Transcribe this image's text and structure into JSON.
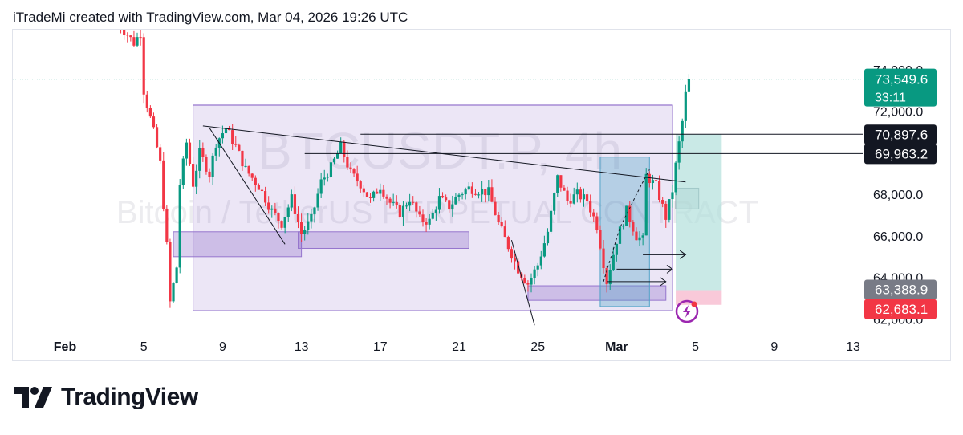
{
  "header": {
    "caption": "iTradeMi created with TradingView.com, Mar 04, 2026 19:26 UTC"
  },
  "watermark": {
    "symbol": "BTCUSDT.P, 4h",
    "description": "Bitcoin / TetherUS PERPETUAL CONTRACT"
  },
  "brand": {
    "name": "TradingView"
  },
  "colors": {
    "up": "#089981",
    "down": "#f23645",
    "zone": "#7e57c2",
    "target": "#b2dfdb",
    "stop": "#f8bbd0",
    "current_price_tag": "#089981",
    "level_tag": "#131722",
    "stop_tag": "#f23645",
    "gray_tag": "#787b86"
  },
  "icons": {
    "lightning": "lightning-icon"
  },
  "chart_data": {
    "type": "candlestick",
    "symbol": "BTCUSDT.P",
    "interval": "4h",
    "ylim": [
      61700,
      75200
    ],
    "y_ticks": [
      "74,000.0",
      "72,000.0",
      "68,000.0",
      "66,000.0",
      "64,000.0",
      "62,000.0"
    ],
    "x_ticks": [
      "Feb",
      "5",
      "9",
      "13",
      "17",
      "21",
      "25",
      "Mar",
      "5",
      "9",
      "13"
    ],
    "price_labels": [
      {
        "label": "73,549.6",
        "sub": "33:11",
        "kind": "current"
      },
      {
        "label": "70,897.6",
        "kind": "level"
      },
      {
        "label": "69,963.2",
        "kind": "level"
      },
      {
        "label": "63,388.9",
        "kind": "gray"
      },
      {
        "label": "62,683.1",
        "kind": "stop"
      }
    ],
    "close_path": [
      [
        "Feb 3 12:00",
        76500
      ],
      [
        "Feb 4 12:00",
        75300
      ],
      [
        "Feb 4 20:00",
        75800
      ],
      [
        "Feb 5 00:00",
        73000
      ],
      [
        "Feb 5 12:00",
        71000
      ],
      [
        "Feb 5 20:00",
        69500
      ],
      [
        "Feb 6 04:00",
        65500
      ],
      [
        "Feb 6 08:00",
        62800
      ],
      [
        "Feb 6 16:00",
        64500
      ],
      [
        "Feb 6 20:00",
        68500
      ],
      [
        "Feb 7 04:00",
        70500
      ],
      [
        "Feb 7 12:00",
        68500
      ],
      [
        "Feb 7 20:00",
        70000
      ],
      [
        "Feb 8 08:00",
        69000
      ],
      [
        "Feb 8 16:00",
        70500
      ],
      [
        "Feb 9 04:00",
        71200
      ],
      [
        "Feb 9 16:00",
        70300
      ],
      [
        "Feb 10 04:00",
        69200
      ],
      [
        "Feb 10 20:00",
        68400
      ],
      [
        "Feb 11 12:00",
        67200
      ],
      [
        "Feb 12 00:00",
        66600
      ],
      [
        "Feb 12 12:00",
        67800
      ],
      [
        "Feb 13 00:00",
        66100
      ],
      [
        "Feb 13 12:00",
        66800
      ],
      [
        "Feb 14 00:00",
        68600
      ],
      [
        "Feb 14 12:00",
        69300
      ],
      [
        "Feb 15 00:00",
        70300
      ],
      [
        "Feb 15 12:00",
        69000
      ],
      [
        "Feb 16 00:00",
        68500
      ],
      [
        "Feb 16 12:00",
        67700
      ],
      [
        "Feb 17 00:00",
        68400
      ],
      [
        "Feb 17 12:00",
        67600
      ],
      [
        "Feb 18 00:00",
        67100
      ],
      [
        "Feb 18 12:00",
        67800
      ],
      [
        "Feb 19 00:00",
        66800
      ],
      [
        "Feb 19 12:00",
        66700
      ],
      [
        "Feb 20 00:00",
        67800
      ],
      [
        "Feb 20 12:00",
        67400
      ],
      [
        "Feb 21 00:00",
        68000
      ],
      [
        "Feb 21 12:00",
        68300
      ],
      [
        "Feb 22 00:00",
        68200
      ],
      [
        "Feb 22 12:00",
        68100
      ],
      [
        "Feb 23 00:00",
        66600
      ],
      [
        "Feb 23 12:00",
        65500
      ],
      [
        "Feb 24 00:00",
        64400
      ],
      [
        "Feb 24 12:00",
        63700
      ],
      [
        "Feb 25 00:00",
        64600
      ],
      [
        "Feb 25 12:00",
        66200
      ],
      [
        "Feb 26 00:00",
        68800
      ],
      [
        "Feb 26 12:00",
        67700
      ],
      [
        "Feb 27 00:00",
        68000
      ],
      [
        "Feb 27 12:00",
        67700
      ],
      [
        "Feb 28 00:00",
        66500
      ],
      [
        "Feb 28 12:00",
        63800
      ],
      [
        "Mar 1 00:00",
        65800
      ],
      [
        "Mar 1 12:00",
        67200
      ],
      [
        "Mar 2 00:00",
        66000
      ],
      [
        "Mar 2 08:00",
        65800
      ],
      [
        "Mar 2 12:00",
        68900
      ],
      [
        "Mar 3 00:00",
        68400
      ],
      [
        "Mar 3 12:00",
        66900
      ],
      [
        "Mar 3 20:00",
        68200
      ],
      [
        "Mar 4 00:00",
        69400
      ],
      [
        "Mar 4 08:00",
        71500
      ],
      [
        "Mar 4 12:00",
        72800
      ],
      [
        "Mar 4 16:00",
        73549.6
      ]
    ],
    "annotations": {
      "range_box": {
        "x": [
          "Feb 7 12:00",
          "Mar 3 20:00"
        ],
        "y": [
          62400,
          72300
        ]
      },
      "demand_zones": [
        {
          "x": [
            "Feb 6 12:00",
            "Feb 13 00:00"
          ],
          "y": [
            65000,
            66200
          ]
        },
        {
          "x": [
            "Feb 12 20:00",
            "Feb 21 12:00"
          ],
          "y": [
            65400,
            66200
          ]
        },
        {
          "x": [
            "Feb 24 12:00",
            "Mar 3 12:00"
          ],
          "y": [
            62900,
            63600
          ]
        }
      ],
      "supply_zone": {
        "x": [
          "Mar 4 00:00",
          "Mar 5 04:00"
        ],
        "y": [
          67300,
          68300
        ]
      },
      "accumulation_box": {
        "x": [
          "Feb 28 04:00",
          "Mar 2 16:00"
        ],
        "y": [
          62600,
          69800
        ]
      },
      "levels": [
        70897.6,
        69963.2
      ],
      "trendlines": [
        {
          "from": [
            "Feb 8 00:00",
            71300
          ],
          "to": [
            "Mar 4 12:00",
            68600
          ]
        },
        {
          "from": [
            "Feb 8 08:00",
            71200
          ],
          "to": [
            "Feb 12 04:00",
            65600
          ]
        },
        {
          "from": [
            "Feb 23 16:00",
            65800
          ],
          "to": [
            "Feb 24 20:00",
            61700
          ]
        }
      ],
      "position": {
        "x": [
          "Mar 4 00:00",
          "Mar 6 08:00"
        ],
        "entry": 63388.9,
        "stop": 62683.1,
        "target": 70897.6
      }
    }
  }
}
